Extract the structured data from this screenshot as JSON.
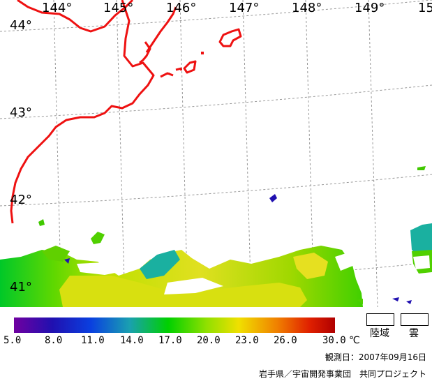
{
  "map": {
    "longitude_labels": [
      "144°",
      "145°",
      "146°",
      "147°",
      "148°",
      "149°",
      "15"
    ],
    "latitude_labels": [
      "44°",
      "43°",
      "42°",
      "41°"
    ],
    "coastline_color": "#ee1111",
    "graticule_color": "#999999"
  },
  "colorbar": {
    "ticks": [
      "5.0",
      "8.0",
      "11.0",
      "14.0",
      "17.0",
      "20.0",
      "23.0",
      "26.0",
      "30.0"
    ],
    "unit": "℃",
    "colors": [
      "#7000a0",
      "#2010b0",
      "#0a40e0",
      "#1aa0b0",
      "#00d000",
      "#90e000",
      "#f0e000",
      "#f08000",
      "#e02000",
      "#b00000"
    ]
  },
  "legend": {
    "land_label": "陸域",
    "cloud_label": "雲"
  },
  "footer": {
    "observation_date": "観測日：2007年09月16日",
    "credit": "岩手県／宇宙開発事業団　共同プロジェクト"
  }
}
